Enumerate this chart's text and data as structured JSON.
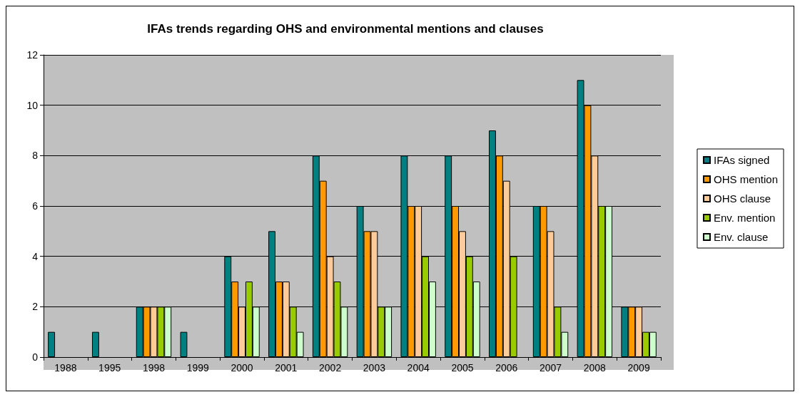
{
  "chart_data": {
    "type": "bar",
    "title": "IFAs trends regarding OHS and environmental mentions and clauses",
    "categories": [
      "1988",
      "1995",
      "1998",
      "1999",
      "2000",
      "2001",
      "2002",
      "2003",
      "2004",
      "2005",
      "2006",
      "2007",
      "2008",
      "2009"
    ],
    "series": [
      {
        "name": "IFAs signed",
        "color": "#008080",
        "values": [
          1,
          1,
          2,
          1,
          4,
          5,
          8,
          6,
          8,
          8,
          9,
          6,
          11,
          2
        ]
      },
      {
        "name": "OHS mention",
        "color": "#ff9900",
        "values": [
          0,
          0,
          2,
          0,
          3,
          3,
          7,
          5,
          6,
          6,
          8,
          6,
          10,
          2
        ]
      },
      {
        "name": "OHS clause",
        "color": "#ffcc99",
        "values": [
          0,
          0,
          2,
          0,
          2,
          3,
          4,
          5,
          6,
          5,
          7,
          5,
          8,
          2
        ]
      },
      {
        "name": "Env. mention",
        "color": "#99cc00",
        "values": [
          0,
          0,
          2,
          0,
          3,
          2,
          3,
          2,
          4,
          4,
          4,
          2,
          6,
          1
        ]
      },
      {
        "name": "Env. clause",
        "color": "#ccffcc",
        "values": [
          0,
          0,
          2,
          0,
          2,
          1,
          2,
          2,
          3,
          3,
          0,
          1,
          6,
          1
        ]
      }
    ],
    "ylim": [
      0,
      12
    ],
    "yticks": [
      0,
      2,
      4,
      6,
      8,
      10,
      12
    ],
    "grid": "y",
    "legend": "right"
  }
}
